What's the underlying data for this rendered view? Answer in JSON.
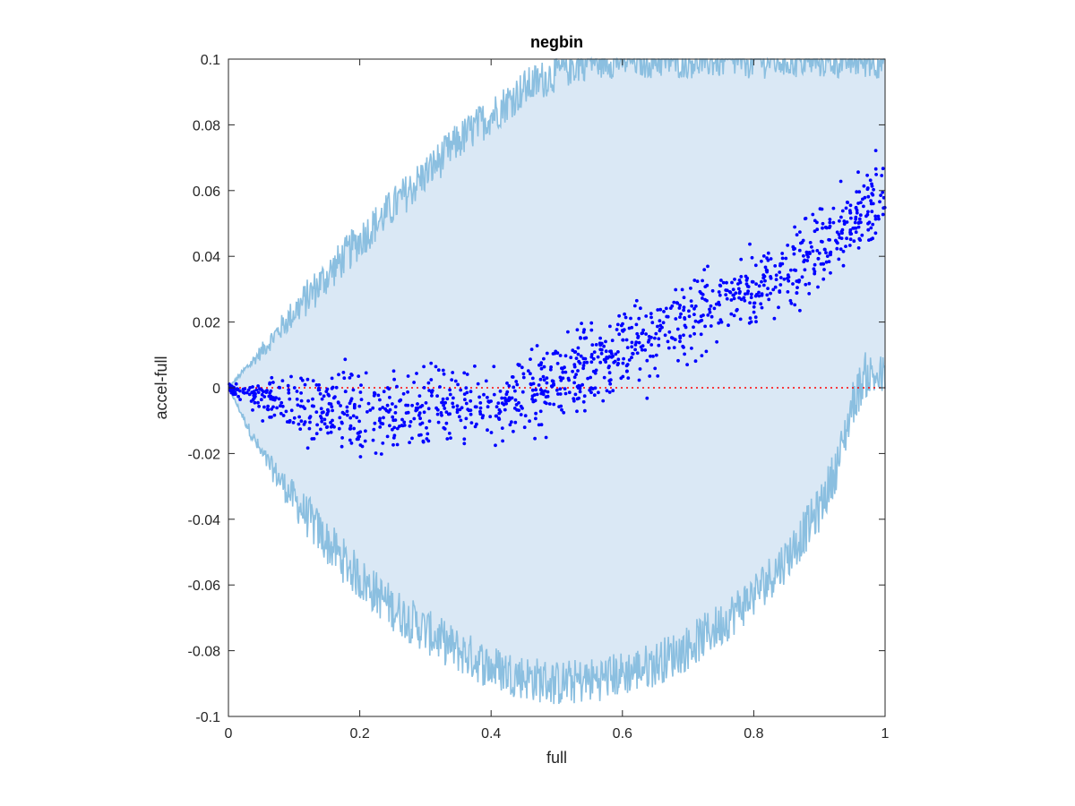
{
  "chart_data": {
    "type": "scatter",
    "title": "negbin",
    "xlabel": "full",
    "ylabel": "accel-full",
    "xlim": [
      0,
      1
    ],
    "ylim": [
      -0.1,
      0.1
    ],
    "xticks": [
      0,
      0.2,
      0.4,
      0.6,
      0.8,
      1
    ],
    "xtick_labels": [
      "0",
      "0.2",
      "0.4",
      "0.6",
      "0.8",
      "1"
    ],
    "yticks": [
      -0.1,
      -0.08,
      -0.06,
      -0.04,
      -0.02,
      0,
      0.02,
      0.04,
      0.06,
      0.08,
      0.1
    ],
    "ytick_labels": [
      "-0.1",
      "-0.08",
      "-0.06",
      "-0.04",
      "-0.02",
      "0",
      "0.02",
      "0.04",
      "0.06",
      "0.08",
      "0.1"
    ],
    "grid": false,
    "colors": {
      "points": "#0000ff",
      "band_fill": "#dae8f5",
      "band_line": "#8bbfe0",
      "reference_line": "#ff0000",
      "axes": "#262626"
    },
    "reference_line": {
      "y": 0,
      "style": "dotted"
    },
    "band": {
      "x": [
        0,
        0.05,
        0.1,
        0.15,
        0.2,
        0.25,
        0.3,
        0.35,
        0.4,
        0.45,
        0.5,
        0.55,
        0.6,
        0.65,
        0.7,
        0.75,
        0.8,
        0.85,
        0.9,
        0.93,
        0.95,
        0.97,
        1.0
      ],
      "upper": [
        0,
        0.011,
        0.023,
        0.034,
        0.045,
        0.055,
        0.065,
        0.075,
        0.083,
        0.091,
        0.096,
        0.1,
        0.1,
        0.1,
        0.1,
        0.1,
        0.1,
        0.1,
        0.1,
        0.1,
        0.1,
        0.1,
        0.1
      ],
      "lower": [
        0,
        -0.02,
        -0.034,
        -0.047,
        -0.058,
        -0.067,
        -0.074,
        -0.08,
        -0.085,
        -0.088,
        -0.09,
        -0.089,
        -0.087,
        -0.084,
        -0.079,
        -0.072,
        -0.063,
        -0.052,
        -0.037,
        -0.022,
        -0.005,
        0.004,
        0.003
      ]
    },
    "series": [
      {
        "x": [
          0.0,
          0.02,
          0.04,
          0.06,
          0.08,
          0.1,
          0.12,
          0.14,
          0.16,
          0.18,
          0.2,
          0.22,
          0.24,
          0.26,
          0.28,
          0.3,
          0.32,
          0.34,
          0.36,
          0.38,
          0.4,
          0.42,
          0.44,
          0.46,
          0.48,
          0.5,
          0.52,
          0.54,
          0.56,
          0.58,
          0.6,
          0.62,
          0.64,
          0.66,
          0.68,
          0.7,
          0.72,
          0.74,
          0.76,
          0.78,
          0.8,
          0.82,
          0.84,
          0.86,
          0.88,
          0.9,
          0.92,
          0.94,
          0.96,
          0.98,
          1.0
        ],
        "y": [
          0,
          -0.001,
          -0.0025,
          -0.0035,
          -0.0045,
          -0.0055,
          -0.006,
          -0.0065,
          -0.007,
          -0.0075,
          -0.008,
          -0.008,
          -0.008,
          -0.0078,
          -0.0075,
          -0.007,
          -0.0065,
          -0.006,
          -0.0055,
          -0.005,
          -0.0045,
          -0.004,
          -0.003,
          -0.002,
          -0.0005,
          0.001,
          0.003,
          0.005,
          0.007,
          0.009,
          0.011,
          0.013,
          0.015,
          0.017,
          0.019,
          0.021,
          0.023,
          0.025,
          0.027,
          0.029,
          0.031,
          0.033,
          0.035,
          0.037,
          0.039,
          0.042,
          0.046,
          0.05,
          0.053,
          0.056,
          0.058
        ],
        "spread_mean_pm": 0.006,
        "point_count": 1200
      }
    ]
  }
}
